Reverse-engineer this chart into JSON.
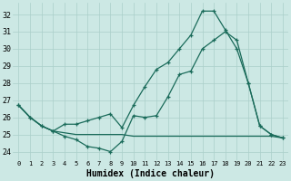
{
  "xlabel": "Humidex (Indice chaleur)",
  "background_color": "#cce8e4",
  "grid_color": "#aacfca",
  "line_color": "#1a6b5a",
  "x_ticks": [
    0,
    1,
    2,
    3,
    4,
    5,
    6,
    7,
    8,
    9,
    10,
    11,
    12,
    13,
    14,
    15,
    16,
    17,
    18,
    19,
    20,
    21,
    22,
    23
  ],
  "y_ticks": [
    24,
    25,
    26,
    27,
    28,
    29,
    30,
    31,
    32
  ],
  "xlim": [
    -0.5,
    23.5
  ],
  "ylim": [
    23.5,
    32.7
  ],
  "line1_x": [
    0,
    1,
    2,
    3,
    4,
    5,
    6,
    7,
    8,
    9,
    10,
    11,
    12,
    13,
    14,
    15,
    16,
    17,
    18,
    19,
    20,
    21,
    22,
    23
  ],
  "line1_y": [
    26.7,
    26.0,
    25.5,
    25.2,
    24.9,
    24.7,
    24.3,
    24.2,
    24.0,
    24.6,
    26.1,
    26.0,
    26.1,
    27.2,
    28.5,
    28.7,
    30.0,
    30.5,
    31.0,
    30.5,
    28.0,
    25.5,
    25.0,
    24.8
  ],
  "line2_x": [
    0,
    1,
    2,
    3,
    4,
    5,
    6,
    7,
    8,
    9,
    10,
    11,
    12,
    13,
    14,
    15,
    16,
    17,
    18,
    19,
    20,
    21,
    22,
    23
  ],
  "line2_y": [
    26.7,
    26.0,
    25.5,
    25.2,
    25.1,
    25.0,
    25.0,
    25.0,
    25.0,
    25.0,
    24.9,
    24.9,
    24.9,
    24.9,
    24.9,
    24.9,
    24.9,
    24.9,
    24.9,
    24.9,
    24.9,
    24.9,
    24.9,
    24.8
  ],
  "line3_x": [
    0,
    1,
    2,
    3,
    4,
    5,
    6,
    7,
    8,
    9,
    10,
    11,
    12,
    13,
    14,
    15,
    16,
    17,
    18,
    19,
    20,
    21,
    22,
    23
  ],
  "line3_y": [
    26.7,
    26.0,
    25.5,
    25.2,
    25.6,
    25.6,
    25.8,
    26.0,
    26.2,
    25.4,
    26.7,
    27.8,
    28.8,
    29.2,
    30.0,
    30.8,
    32.2,
    32.2,
    31.1,
    30.0,
    28.0,
    25.5,
    25.0,
    24.8
  ]
}
